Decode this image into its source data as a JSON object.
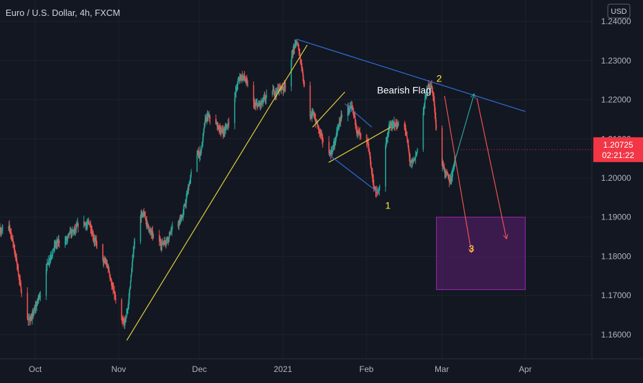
{
  "header": {
    "title": "Euro / U.S. Dollar, 4h, FXCM",
    "currency_button": "USD"
  },
  "price_badge": {
    "price": "1.20725",
    "countdown": "02:21:22",
    "color": "#f23645"
  },
  "colors": {
    "background": "#131722",
    "up": "#26a69a",
    "down": "#ef5350",
    "trend_blue": "#2962ff",
    "channel_yellow": "#ffeb3b",
    "target_box_fill": "#4a1e5e",
    "target_box_stroke": "#9c27b0"
  },
  "annotations": {
    "bearish_flag": "Bearish Flag",
    "wave_1": "1",
    "wave_2": "2",
    "wave_3": "3"
  },
  "chart_data": {
    "type": "candlestick",
    "title": "Euro / U.S. Dollar, 4h, FXCM",
    "xlabel": "",
    "ylabel": "",
    "ylim": [
      1.1538,
      1.2455
    ],
    "y_ticks": [
      "1.24000",
      "1.23000",
      "1.22000",
      "1.21000",
      "1.20000",
      "1.19000",
      "1.18000",
      "1.17000",
      "1.16000"
    ],
    "x_ticks": [
      "Oct",
      "Nov",
      "Dec",
      "2021",
      "Feb",
      "Mar",
      "Apr"
    ],
    "last_price": 1.20725,
    "grid": true,
    "anchors": [
      {
        "date": "2020-09-21",
        "price": 1.187
      },
      {
        "date": "2020-09-29",
        "price": 1.164
      },
      {
        "date": "2020-10-09",
        "price": 1.183
      },
      {
        "date": "2020-10-21",
        "price": 1.188
      },
      {
        "date": "2020-10-27",
        "price": 1.178
      },
      {
        "date": "2020-11-03",
        "price": 1.162
      },
      {
        "date": "2020-11-09",
        "price": 1.191
      },
      {
        "date": "2020-11-16",
        "price": 1.183
      },
      {
        "date": "2020-11-23",
        "price": 1.188
      },
      {
        "date": "2020-12-01",
        "price": 1.206
      },
      {
        "date": "2020-12-04",
        "price": 1.215
      },
      {
        "date": "2020-12-10",
        "price": 1.212
      },
      {
        "date": "2020-12-17",
        "price": 1.226
      },
      {
        "date": "2020-12-22",
        "price": 1.218
      },
      {
        "date": "2021-01-01",
        "price": 1.223
      },
      {
        "date": "2021-01-06",
        "price": 1.234
      },
      {
        "date": "2021-01-12",
        "price": 1.216
      },
      {
        "date": "2021-01-18",
        "price": 1.206
      },
      {
        "date": "2021-01-25",
        "price": 1.218
      },
      {
        "date": "2021-02-01",
        "price": 1.208
      },
      {
        "date": "2021-02-05",
        "price": 1.196
      },
      {
        "date": "2021-02-10",
        "price": 1.213
      },
      {
        "date": "2021-02-15",
        "price": 1.214
      },
      {
        "date": "2021-02-18",
        "price": 1.203
      },
      {
        "date": "2021-02-25",
        "price": 1.224
      },
      {
        "date": "2021-03-01",
        "price": 1.204
      },
      {
        "date": "2021-03-04",
        "price": 1.199
      },
      {
        "date": "2021-03-07",
        "price": 1.2072
      }
    ],
    "drawings": {
      "upper_trendline": [
        {
          "date": "2021-01-06",
          "price": 1.2355
        },
        {
          "date": "2021-04-01",
          "price": 1.217
        }
      ],
      "rising_support": [
        {
          "date": "2020-11-04",
          "price": 1.1585
        },
        {
          "date": "2021-01-10",
          "price": 1.234
        }
      ],
      "flag_upper": [
        {
          "date": "2021-01-12",
          "price": 1.213
        },
        {
          "date": "2021-01-24",
          "price": 1.222
        }
      ],
      "flag_lower": [
        {
          "date": "2021-01-18",
          "price": 1.204
        },
        {
          "date": "2021-02-10",
          "price": 1.213
        }
      ],
      "channel_top": [
        {
          "date": "2021-01-24",
          "price": 1.219
        },
        {
          "date": "2021-02-03",
          "price": 1.213
        }
      ],
      "channel_bottom": [
        {
          "date": "2021-01-18",
          "price": 1.206
        },
        {
          "date": "2021-02-06",
          "price": 1.196
        }
      ],
      "green_arrow": [
        {
          "date": "2021-03-04",
          "price": 1.2
        },
        {
          "date": "2021-03-13",
          "price": 1.2215
        }
      ],
      "red_arrow_1": [
        {
          "date": "2021-03-02",
          "price": 1.221
        },
        {
          "date": "2021-03-12",
          "price": 1.181
        }
      ],
      "red_arrow_2": [
        {
          "date": "2021-03-14",
          "price": 1.2205
        },
        {
          "date": "2021-03-25",
          "price": 1.1845
        }
      ],
      "target_box": [
        {
          "date": "2021-02-27",
          "price": 1.19
        },
        {
          "date": "2021-04-01",
          "price": 1.1715
        }
      ]
    },
    "label_positions": {
      "bearish_flag": {
        "date": "2021-02-15",
        "price": 1.2225
      },
      "wave_1": {
        "date": "2021-02-09",
        "price": 1.193
      },
      "wave_2": {
        "date": "2021-02-28",
        "price": 1.2255
      },
      "wave_3": {
        "date": "2021-03-12",
        "price": 1.182
      }
    }
  }
}
